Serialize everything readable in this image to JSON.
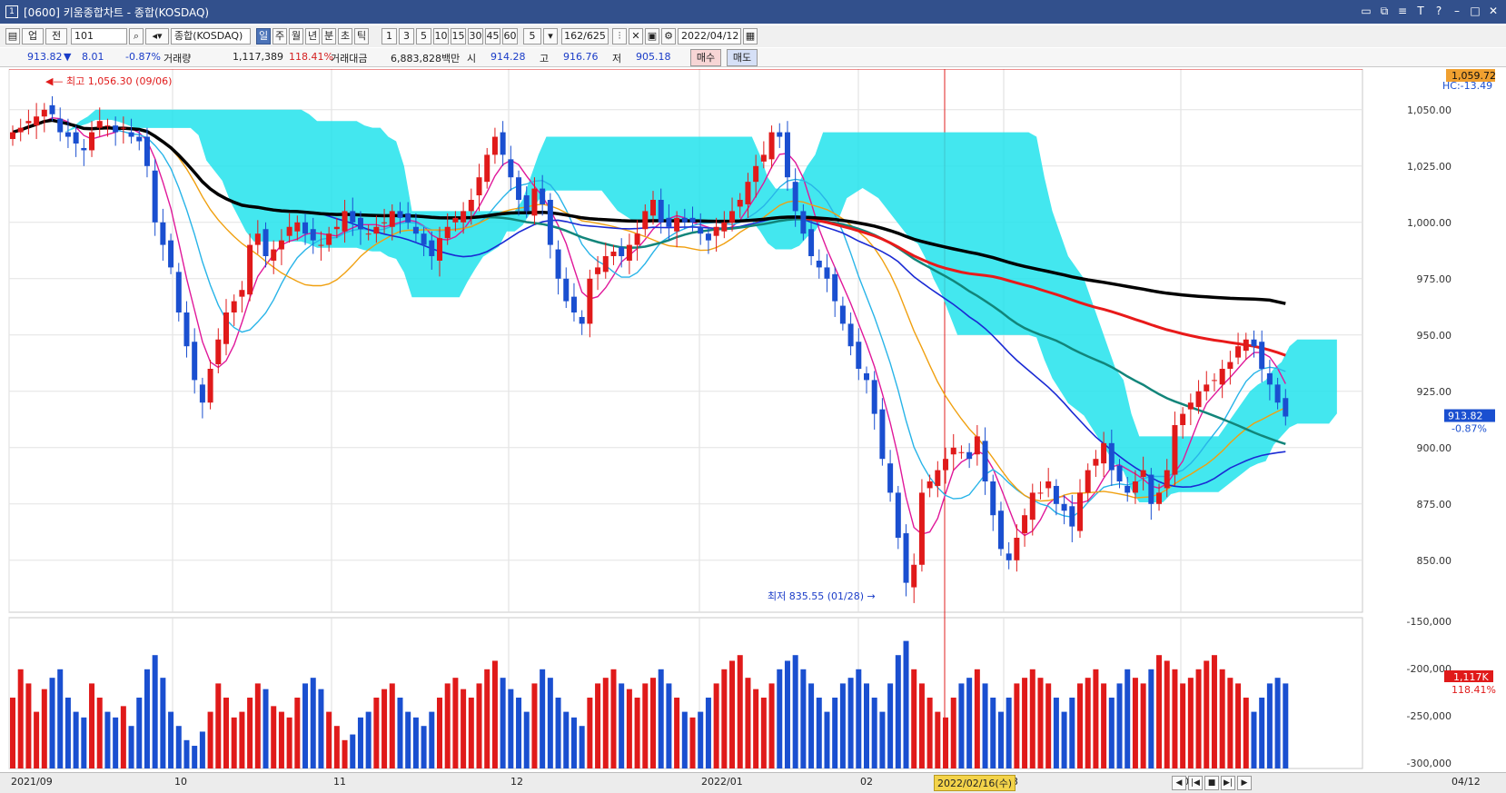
{
  "titlebar": {
    "title": "[0600] 키움종합차트 - 종합(KOSDAQ)",
    "icon": "window-icon"
  },
  "toolbar": {
    "market": "업",
    "type": "전",
    "code": "101",
    "name": "종합(KOSDAQ)",
    "periods": [
      "일",
      "주",
      "월",
      "년",
      "분",
      "초",
      "틱"
    ],
    "selected_period": "일",
    "intervals": [
      "1",
      "3",
      "5",
      "10",
      "15",
      "30",
      "45",
      "60"
    ],
    "interval_value": "5",
    "count": "162/625",
    "date": "2022/04/12"
  },
  "quote": {
    "price": "913.82",
    "arrow": "▼",
    "change": "8.01",
    "change_pct": "-0.87%",
    "volume_label": "거래량",
    "volume": "1,117,389",
    "volume_pct": "118.41%",
    "amount_label": "거래대금",
    "amount": "6,883,828백만",
    "open_label": "시",
    "open": "914.28",
    "high_label": "고",
    "high": "916.76",
    "low_label": "저",
    "low": "905.18",
    "buy": "매수",
    "sell": "매도"
  },
  "chart_data": {
    "type": "candlestick",
    "y_ticks": [
      "1,050.00",
      "1,025.00",
      "1,000.00",
      "975.00",
      "950.00",
      "925.00",
      "900.00",
      "875.00",
      "850.00"
    ],
    "y_range": [
      835,
      1060
    ],
    "x_labels": [
      "2021/09",
      "10",
      "11",
      "12",
      "2022/01",
      "02",
      "03",
      "04",
      "04/12"
    ],
    "max_label": "최고 1,056.30 (09/06)",
    "min_label": "최저 835.55 (01/28)",
    "cursor_date": "2022/02/16(수)",
    "top_price_box": "1,059.72",
    "hc_label": "HC:-13.49",
    "last_price_box": "913.82",
    "last_pct": "-0.87%",
    "volume_ticks": [
      "-150,000",
      "-200,000",
      "-250,000",
      "-300,000"
    ],
    "volume_box": "1,117K",
    "volume_pct_box": "118.41%",
    "closes": [
      1040,
      1042,
      1045,
      1047,
      1050,
      1048,
      1040,
      1038,
      1035,
      1032,
      1040,
      1045,
      1043,
      1040,
      1042,
      1038,
      1036,
      1025,
      1000,
      990,
      980,
      960,
      945,
      930,
      920,
      935,
      948,
      960,
      965,
      970,
      990,
      995,
      985,
      988,
      992,
      998,
      1000,
      995,
      992,
      990,
      995,
      998,
      1005,
      1000,
      997,
      995,
      998,
      1000,
      1005,
      1002,
      1000,
      995,
      990,
      985,
      993,
      998,
      1002,
      1005,
      1010,
      1020,
      1030,
      1038,
      1030,
      1020,
      1010,
      1005,
      1015,
      1008,
      990,
      975,
      965,
      960,
      955,
      975,
      980,
      985,
      987,
      985,
      990,
      995,
      1005,
      1010,
      1000,
      998,
      1002,
      1000,
      1000,
      995,
      992,
      998,
      1000,
      1005,
      1010,
      1018,
      1025,
      1030,
      1040,
      1038,
      1020,
      1005,
      995,
      985,
      980,
      975,
      965,
      955,
      945,
      935,
      930,
      915,
      895,
      880,
      860,
      840,
      848,
      880,
      885,
      890,
      895,
      900,
      898,
      895,
      905,
      885,
      870,
      855,
      850,
      860,
      870,
      880,
      880,
      885,
      875,
      872,
      865,
      880,
      890,
      895,
      902,
      890,
      885,
      880,
      885,
      890,
      875,
      880,
      890,
      910,
      915,
      920,
      925,
      928,
      930,
      935,
      938,
      945,
      948,
      945,
      935,
      928,
      920,
      913.82
    ],
    "volumes": [
      205,
      215,
      210,
      200,
      208,
      212,
      215,
      205,
      200,
      198,
      210,
      205,
      200,
      198,
      202,
      195,
      205,
      215,
      220,
      212,
      200,
      195,
      190,
      188,
      193,
      200,
      210,
      205,
      198,
      200,
      205,
      210,
      208,
      202,
      200,
      198,
      205,
      210,
      212,
      208,
      200,
      195,
      190,
      192,
      198,
      200,
      205,
      208,
      210,
      205,
      200,
      198,
      195,
      200,
      205,
      210,
      212,
      208,
      205,
      210,
      215,
      218,
      212,
      208,
      205,
      200,
      210,
      215,
      212,
      205,
      200,
      198,
      195,
      205,
      210,
      212,
      215,
      210,
      208,
      205,
      210,
      212,
      215,
      210,
      205,
      200,
      198,
      200,
      205,
      210,
      215,
      218,
      220,
      212,
      208,
      205,
      210,
      215,
      218,
      220,
      215,
      210,
      205,
      200,
      205,
      210,
      212,
      215,
      210,
      205,
      200,
      210,
      220,
      225,
      215,
      210,
      205,
      200,
      198,
      205,
      210,
      212,
      215,
      210,
      205,
      200,
      205,
      210,
      212,
      215,
      212,
      210,
      205,
      200,
      205,
      210,
      212,
      215,
      210,
      205,
      210,
      215,
      212,
      210,
      215,
      220,
      218,
      215,
      210,
      212,
      215,
      218,
      220,
      215,
      212,
      210,
      205,
      200,
      205,
      210,
      212,
      210
    ]
  },
  "bottom": {
    "nav": [
      "◀",
      "|◀",
      "■",
      "▶|",
      "▶"
    ]
  }
}
